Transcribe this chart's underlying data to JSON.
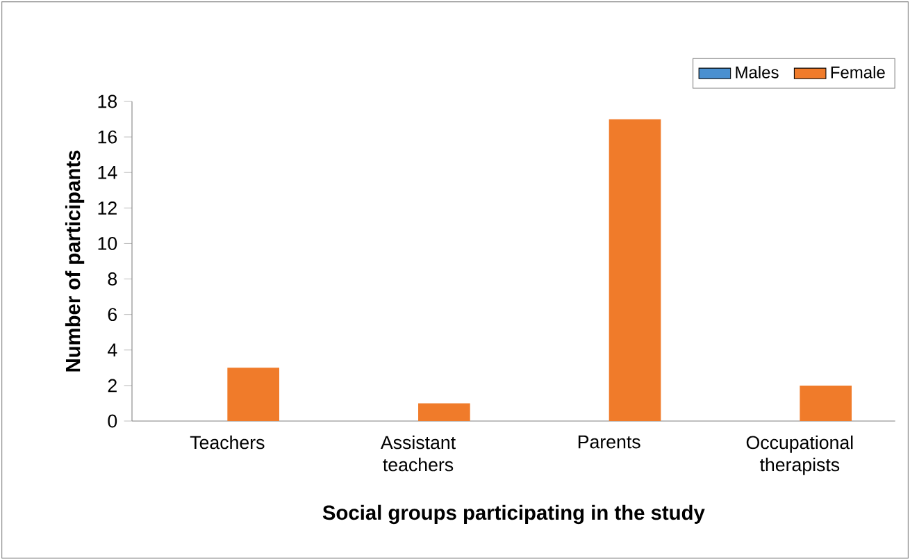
{
  "chart_data": {
    "type": "bar",
    "xlabel": "Social groups participating in the study",
    "ylabel": "Number of participants",
    "categories": [
      "Teachers",
      "Assistant teachers",
      "Parents",
      "Occupational therapists"
    ],
    "series": [
      {
        "name": "Males",
        "color": "#4a90d0",
        "values": [
          0,
          0,
          0,
          0
        ]
      },
      {
        "name": "Female",
        "color": "#f07b2a",
        "values": [
          3,
          1,
          17,
          2
        ]
      }
    ],
    "ylim": [
      0,
      18
    ],
    "yticks": [
      0,
      2,
      4,
      6,
      8,
      10,
      12,
      14,
      16,
      18
    ],
    "legend": "top right"
  }
}
